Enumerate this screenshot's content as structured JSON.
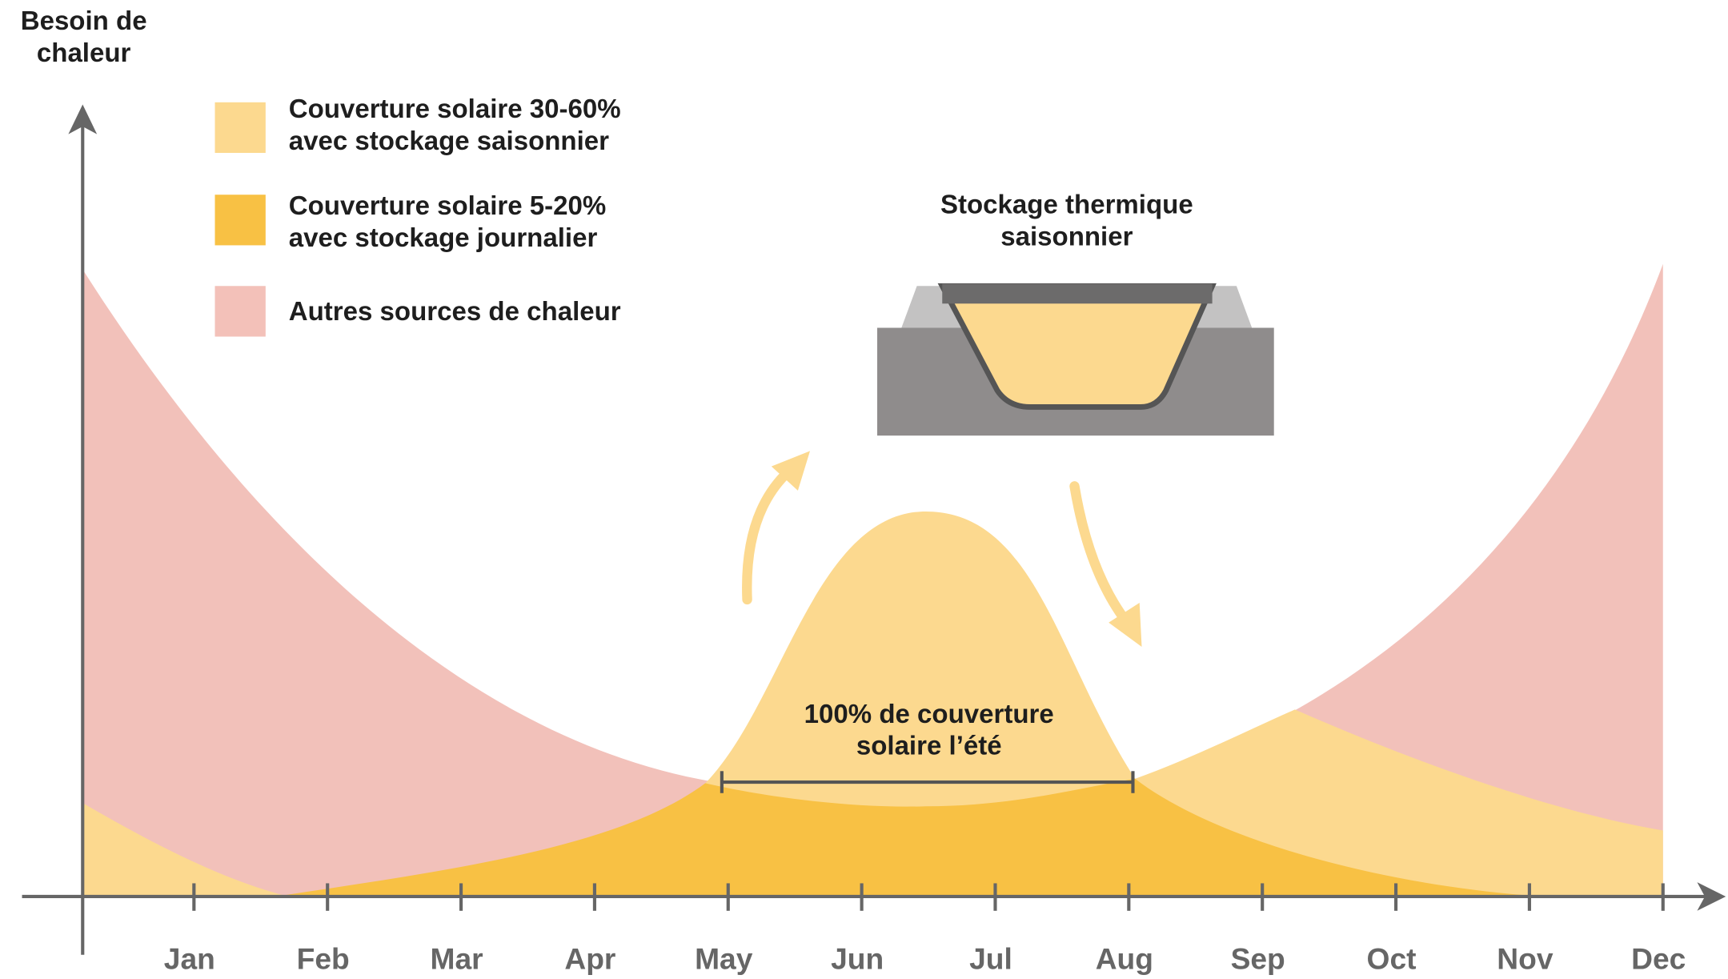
{
  "y_axis_label": [
    "Besoin de",
    "chaleur"
  ],
  "legend": [
    {
      "lines": [
        "Couverture solaire 30-60%",
        "avec stockage saisonnier"
      ]
    },
    {
      "lines": [
        "Couverture solaire 5-20%",
        "avec stockage journalier"
      ]
    },
    {
      "lines": [
        "Autres sources de chaleur"
      ]
    }
  ],
  "storage_label": [
    "Stockage thermique",
    "saisonnier"
  ],
  "summer_label": [
    "100% de couverture",
    "solaire l’été"
  ],
  "months": [
    "Jan",
    "Feb",
    "Mar",
    "Apr",
    "May",
    "Jun",
    "Jul",
    "Aug",
    "Sep",
    "Oct",
    "Nov",
    "Dec"
  ]
}
